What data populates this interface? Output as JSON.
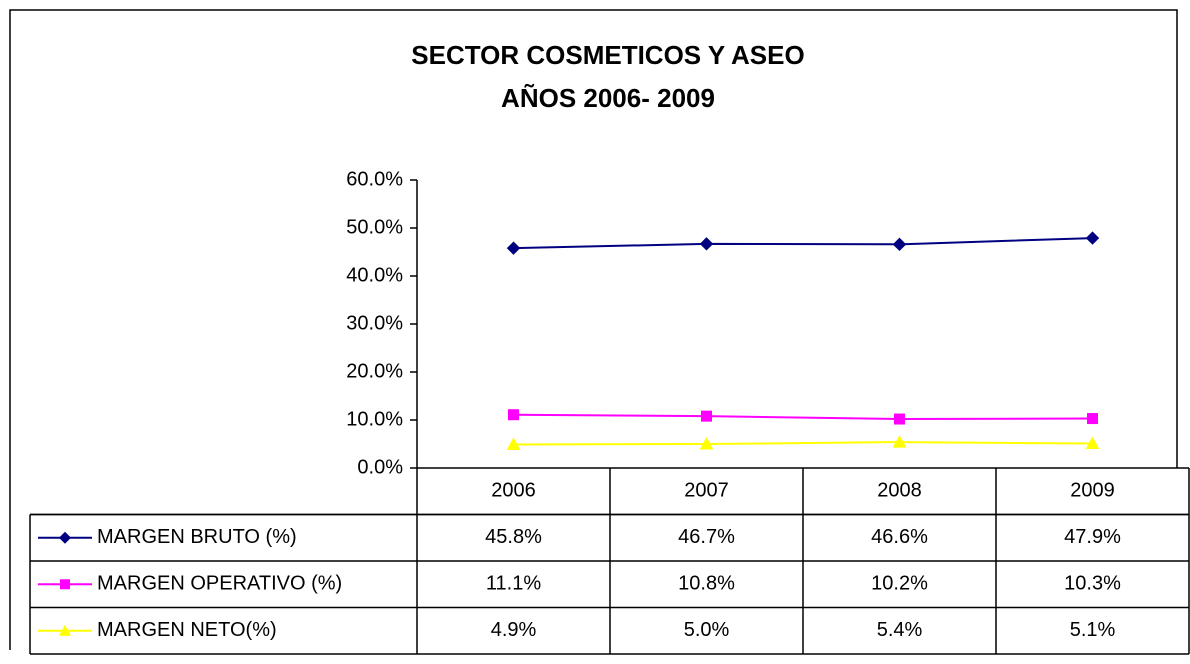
{
  "chart_data": {
    "type": "line",
    "title": "SECTOR COSMETICOS Y ASEO",
    "subtitle": "AÑOS 2006- 2009",
    "categories": [
      "2006",
      "2007",
      "2008",
      "2009"
    ],
    "series": [
      {
        "name": "MARGEN  BRUTO (%)",
        "color": "#000080",
        "marker": "diamond",
        "values": [
          45.8,
          46.7,
          46.6,
          47.9
        ],
        "value_labels": [
          "45.8%",
          "46.7%",
          "46.6%",
          "47.9%"
        ]
      },
      {
        "name": "MARGEN OPERATIVO (%)",
        "color": "#ff00ff",
        "marker": "square",
        "values": [
          11.1,
          10.8,
          10.2,
          10.3
        ],
        "value_labels": [
          "11.1%",
          "10.8%",
          "10.2%",
          "10.3%"
        ]
      },
      {
        "name": "MARGEN NETO(%)",
        "color": "#ffff00",
        "marker": "triangle",
        "values": [
          4.9,
          5.0,
          5.4,
          5.1
        ],
        "value_labels": [
          "4.9%",
          "5.0%",
          "5.4%",
          "5.1%"
        ]
      }
    ],
    "ylim": [
      0,
      60
    ],
    "yticks": [
      {
        "value": 0,
        "label": "0.0%"
      },
      {
        "value": 10,
        "label": "10.0%"
      },
      {
        "value": 20,
        "label": "20.0%"
      },
      {
        "value": 30,
        "label": "30.0%"
      },
      {
        "value": 40,
        "label": "40.0%"
      },
      {
        "value": 50,
        "label": "50.0%"
      },
      {
        "value": 60,
        "label": "60.0%"
      }
    ],
    "grid": false
  }
}
